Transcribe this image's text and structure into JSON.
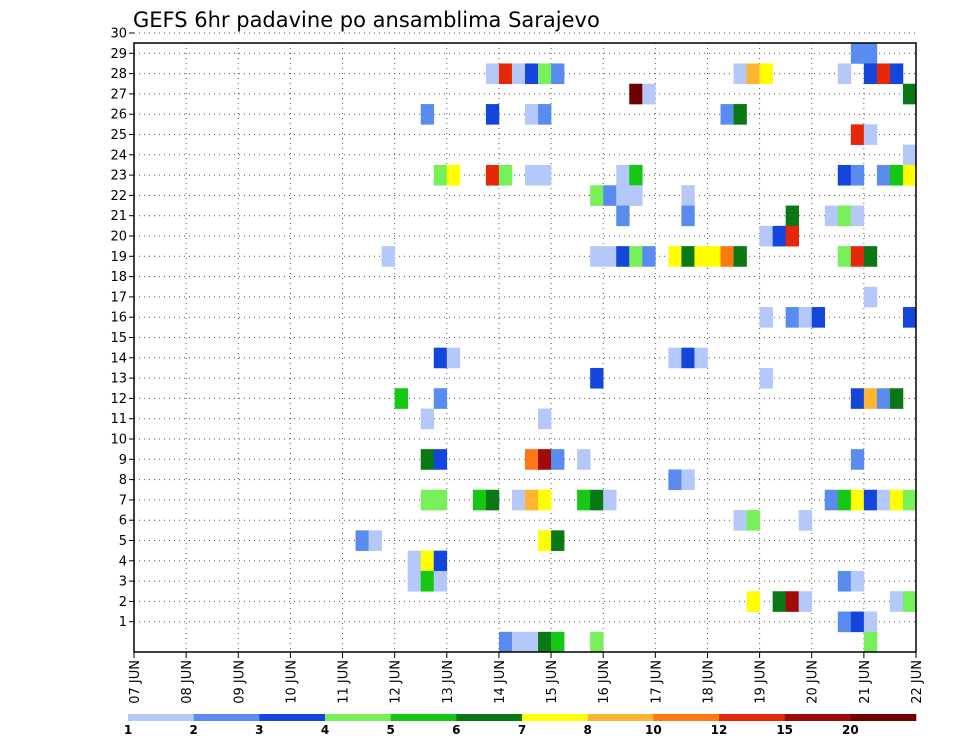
{
  "chart_data": {
    "type": "heatmap",
    "title": "GEFS 6hr padavine po ansamblima Sarajevo",
    "x_ticks": [
      "07 JUN",
      "08 JUN",
      "09 JUN",
      "10 JUN",
      "11 JUN",
      "12 JUN",
      "13 JUN",
      "14 JUN",
      "15 JUN",
      "16 JUN",
      "17 JUN",
      "18 JUN",
      "19 JUN",
      "20 JUN",
      "21 JUN",
      "22 JUN"
    ],
    "y_ticks": [
      "1",
      "2",
      "3",
      "4",
      "5",
      "6",
      "7",
      "8",
      "9",
      "10",
      "11",
      "12",
      "13",
      "14",
      "15",
      "16",
      "17",
      "18",
      "19",
      "20",
      "21",
      "22",
      "23",
      "24",
      "25",
      "26",
      "27",
      "28",
      "29",
      "30"
    ],
    "grid": "dotted",
    "x_start": "07 JUN 00Z",
    "step_hours": 6,
    "legend_position": "bottom",
    "legend": {
      "labels": [
        "1",
        "2",
        "3",
        "4",
        "5",
        "6",
        "7",
        "8",
        "10",
        "12",
        "15",
        "20"
      ],
      "colors": [
        "#b4c8fa",
        "#5a8cf0",
        "#1446dc",
        "#78f05a",
        "#14c814",
        "#0a7814",
        "#ffff00",
        "#ffb432",
        "#ff7814",
        "#e6280a",
        "#a00a0a",
        "#6e0000"
      ]
    },
    "cells": [
      {
        "m": 30,
        "t": 26,
        "c": 1
      },
      {
        "m": 30,
        "t": 27,
        "c": 4
      },
      {
        "m": 30,
        "t": 31,
        "c": 1
      },
      {
        "m": 30,
        "t": 35,
        "c": 12
      },
      {
        "m": 30,
        "t": 36,
        "c": 6
      },
      {
        "m": 30,
        "t": 37,
        "c": 5
      },
      {
        "m": 30,
        "t": 50,
        "c": 2
      },
      {
        "m": 30,
        "t": 51,
        "c": 3
      },
      {
        "m": 30,
        "t": 53,
        "c": 1
      },
      {
        "m": 30,
        "t": 55,
        "c": 1
      },
      {
        "m": 30,
        "t": 56,
        "c": 3
      },
      {
        "m": 29,
        "t": 55,
        "c": 2
      },
      {
        "m": 29,
        "t": 56,
        "c": 2
      },
      {
        "m": 28,
        "t": 27,
        "c": 1
      },
      {
        "m": 28,
        "t": 28,
        "c": 10
      },
      {
        "m": 28,
        "t": 29,
        "c": 1
      },
      {
        "m": 28,
        "t": 30,
        "c": 3
      },
      {
        "m": 28,
        "t": 31,
        "c": 4
      },
      {
        "m": 28,
        "t": 32,
        "c": 2
      },
      {
        "m": 28,
        "t": 46,
        "c": 1
      },
      {
        "m": 28,
        "t": 47,
        "c": 8
      },
      {
        "m": 28,
        "t": 48,
        "c": 7
      },
      {
        "m": 28,
        "t": 54,
        "c": 1
      },
      {
        "m": 28,
        "t": 56,
        "c": 3
      },
      {
        "m": 28,
        "t": 57,
        "c": 10
      },
      {
        "m": 28,
        "t": 58,
        "c": 3
      },
      {
        "m": 27,
        "t": 38,
        "c": 12
      },
      {
        "m": 27,
        "t": 39,
        "c": 1
      },
      {
        "m": 27,
        "t": 59,
        "c": 6
      },
      {
        "m": 26,
        "t": 22,
        "c": 2
      },
      {
        "m": 26,
        "t": 27,
        "c": 3
      },
      {
        "m": 26,
        "t": 30,
        "c": 1
      },
      {
        "m": 26,
        "t": 31,
        "c": 2
      },
      {
        "m": 26,
        "t": 45,
        "c": 2
      },
      {
        "m": 26,
        "t": 46,
        "c": 6
      },
      {
        "m": 25,
        "t": 55,
        "c": 10
      },
      {
        "m": 25,
        "t": 56,
        "c": 1
      },
      {
        "m": 24,
        "t": 59,
        "c": 1
      },
      {
        "m": 23,
        "t": 23,
        "c": 4
      },
      {
        "m": 23,
        "t": 24,
        "c": 7
      },
      {
        "m": 23,
        "t": 27,
        "c": 10
      },
      {
        "m": 23,
        "t": 28,
        "c": 4
      },
      {
        "m": 23,
        "t": 30,
        "c": 1
      },
      {
        "m": 23,
        "t": 31,
        "c": 1
      },
      {
        "m": 23,
        "t": 37,
        "c": 1
      },
      {
        "m": 23,
        "t": 38,
        "c": 5
      },
      {
        "m": 23,
        "t": 54,
        "c": 3
      },
      {
        "m": 23,
        "t": 55,
        "c": 2
      },
      {
        "m": 23,
        "t": 57,
        "c": 2
      },
      {
        "m": 23,
        "t": 58,
        "c": 5
      },
      {
        "m": 23,
        "t": 59,
        "c": 7
      },
      {
        "m": 22,
        "t": 35,
        "c": 4
      },
      {
        "m": 22,
        "t": 36,
        "c": 2
      },
      {
        "m": 22,
        "t": 37,
        "c": 1
      },
      {
        "m": 22,
        "t": 38,
        "c": 1
      },
      {
        "m": 22,
        "t": 42,
        "c": 1
      },
      {
        "m": 21,
        "t": 37,
        "c": 2
      },
      {
        "m": 21,
        "t": 42,
        "c": 2
      },
      {
        "m": 21,
        "t": 50,
        "c": 6
      },
      {
        "m": 21,
        "t": 53,
        "c": 1
      },
      {
        "m": 21,
        "t": 54,
        "c": 4
      },
      {
        "m": 21,
        "t": 55,
        "c": 1
      },
      {
        "m": 20,
        "t": 48,
        "c": 1
      },
      {
        "m": 20,
        "t": 49,
        "c": 3
      },
      {
        "m": 20,
        "t": 50,
        "c": 10
      },
      {
        "m": 19,
        "t": 19,
        "c": 1
      },
      {
        "m": 19,
        "t": 35,
        "c": 1
      },
      {
        "m": 19,
        "t": 36,
        "c": 1
      },
      {
        "m": 19,
        "t": 37,
        "c": 3
      },
      {
        "m": 19,
        "t": 38,
        "c": 4
      },
      {
        "m": 19,
        "t": 39,
        "c": 2
      },
      {
        "m": 19,
        "t": 41,
        "c": 7
      },
      {
        "m": 19,
        "t": 42,
        "c": 6
      },
      {
        "m": 19,
        "t": 43,
        "c": 7
      },
      {
        "m": 19,
        "t": 44,
        "c": 7
      },
      {
        "m": 19,
        "t": 45,
        "c": 9
      },
      {
        "m": 19,
        "t": 46,
        "c": 6
      },
      {
        "m": 19,
        "t": 54,
        "c": 4
      },
      {
        "m": 19,
        "t": 55,
        "c": 10
      },
      {
        "m": 19,
        "t": 56,
        "c": 6
      },
      {
        "m": 17,
        "t": 56,
        "c": 1
      },
      {
        "m": 16,
        "t": 48,
        "c": 1
      },
      {
        "m": 16,
        "t": 50,
        "c": 2
      },
      {
        "m": 16,
        "t": 51,
        "c": 1
      },
      {
        "m": 16,
        "t": 52,
        "c": 3
      },
      {
        "m": 16,
        "t": 59,
        "c": 3
      },
      {
        "m": 14,
        "t": 23,
        "c": 3
      },
      {
        "m": 14,
        "t": 24,
        "c": 1
      },
      {
        "m": 14,
        "t": 41,
        "c": 1
      },
      {
        "m": 14,
        "t": 42,
        "c": 3
      },
      {
        "m": 14,
        "t": 43,
        "c": 1
      },
      {
        "m": 13,
        "t": 35,
        "c": 3
      },
      {
        "m": 13,
        "t": 48,
        "c": 1
      },
      {
        "m": 12,
        "t": 20,
        "c": 5
      },
      {
        "m": 12,
        "t": 23,
        "c": 2
      },
      {
        "m": 12,
        "t": 55,
        "c": 3
      },
      {
        "m": 12,
        "t": 56,
        "c": 8
      },
      {
        "m": 12,
        "t": 57,
        "c": 2
      },
      {
        "m": 12,
        "t": 58,
        "c": 6
      },
      {
        "m": 12,
        "t": 60,
        "c": 11
      },
      {
        "m": 11,
        "t": 22,
        "c": 1
      },
      {
        "m": 11,
        "t": 31,
        "c": 1
      },
      {
        "m": 9,
        "t": 22,
        "c": 6
      },
      {
        "m": 9,
        "t": 23,
        "c": 3
      },
      {
        "m": 9,
        "t": 30,
        "c": 9
      },
      {
        "m": 9,
        "t": 31,
        "c": 11
      },
      {
        "m": 9,
        "t": 32,
        "c": 2
      },
      {
        "m": 9,
        "t": 34,
        "c": 1
      },
      {
        "m": 9,
        "t": 55,
        "c": 2
      },
      {
        "m": 8,
        "t": 41,
        "c": 2
      },
      {
        "m": 8,
        "t": 42,
        "c": 1
      },
      {
        "m": 7,
        "t": 22,
        "c": 4
      },
      {
        "m": 7,
        "t": 23,
        "c": 4
      },
      {
        "m": 7,
        "t": 26,
        "c": 5
      },
      {
        "m": 7,
        "t": 27,
        "c": 6
      },
      {
        "m": 7,
        "t": 29,
        "c": 1
      },
      {
        "m": 7,
        "t": 30,
        "c": 8
      },
      {
        "m": 7,
        "t": 31,
        "c": 7
      },
      {
        "m": 7,
        "t": 34,
        "c": 5
      },
      {
        "m": 7,
        "t": 35,
        "c": 6
      },
      {
        "m": 7,
        "t": 36,
        "c": 1
      },
      {
        "m": 7,
        "t": 53,
        "c": 2
      },
      {
        "m": 7,
        "t": 54,
        "c": 5
      },
      {
        "m": 7,
        "t": 55,
        "c": 7
      },
      {
        "m": 7,
        "t": 56,
        "c": 3
      },
      {
        "m": 7,
        "t": 57,
        "c": 1
      },
      {
        "m": 7,
        "t": 58,
        "c": 7
      },
      {
        "m": 7,
        "t": 59,
        "c": 4
      },
      {
        "m": 6,
        "t": 46,
        "c": 1
      },
      {
        "m": 6,
        "t": 47,
        "c": 4
      },
      {
        "m": 6,
        "t": 51,
        "c": 1
      },
      {
        "m": 5,
        "t": 17,
        "c": 2
      },
      {
        "m": 5,
        "t": 18,
        "c": 1
      },
      {
        "m": 5,
        "t": 31,
        "c": 7
      },
      {
        "m": 5,
        "t": 32,
        "c": 6
      },
      {
        "m": 4,
        "t": 21,
        "c": 1
      },
      {
        "m": 4,
        "t": 22,
        "c": 7
      },
      {
        "m": 4,
        "t": 23,
        "c": 3
      },
      {
        "m": 3,
        "t": 21,
        "c": 1
      },
      {
        "m": 3,
        "t": 22,
        "c": 5
      },
      {
        "m": 3,
        "t": 23,
        "c": 1
      },
      {
        "m": 3,
        "t": 54,
        "c": 2
      },
      {
        "m": 3,
        "t": 55,
        "c": 1
      },
      {
        "m": 2,
        "t": 47,
        "c": 7
      },
      {
        "m": 2,
        "t": 49,
        "c": 6
      },
      {
        "m": 2,
        "t": 50,
        "c": 11
      },
      {
        "m": 2,
        "t": 51,
        "c": 1
      },
      {
        "m": 2,
        "t": 58,
        "c": 1
      },
      {
        "m": 2,
        "t": 59,
        "c": 4
      },
      {
        "m": 1,
        "t": 54,
        "c": 2
      },
      {
        "m": 1,
        "t": 55,
        "c": 3
      },
      {
        "m": 1,
        "t": 56,
        "c": 1
      },
      {
        "m": 0,
        "t": 28,
        "c": 2
      },
      {
        "m": 0,
        "t": 29,
        "c": 1
      },
      {
        "m": 0,
        "t": 30,
        "c": 1
      },
      {
        "m": 0,
        "t": 31,
        "c": 6
      },
      {
        "m": 0,
        "t": 32,
        "c": 5
      },
      {
        "m": 0,
        "t": 35,
        "c": 4
      },
      {
        "m": 0,
        "t": 56,
        "c": 4
      }
    ]
  }
}
